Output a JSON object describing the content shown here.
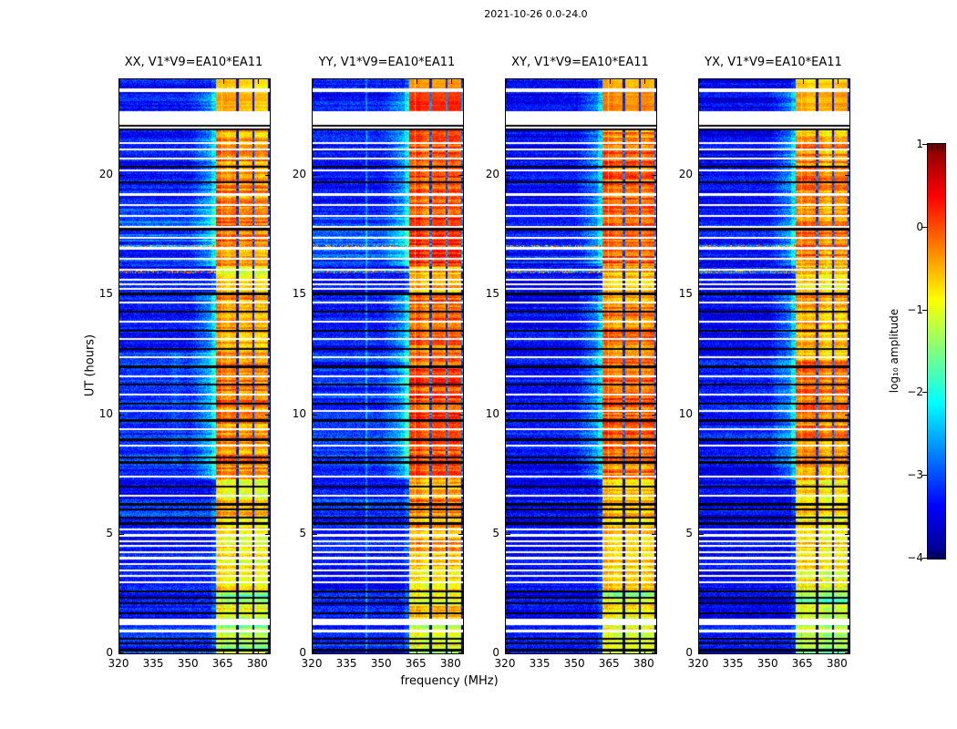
{
  "title": "2021-10-26 0.0-24.0",
  "axes": {
    "xlabel": "frequency (MHz)",
    "ylabel": "UT (hours)",
    "xlim": [
      320,
      385
    ],
    "ylim": [
      0,
      24
    ],
    "xticks": [
      320,
      335,
      350,
      365,
      380
    ],
    "yticks": [
      0,
      5,
      10,
      15,
      20
    ],
    "xtick_labels": [
      "320",
      "335",
      "350",
      "365",
      "380"
    ],
    "ytick_labels": [
      "0",
      "5",
      "10",
      "15",
      "20"
    ]
  },
  "colorbar": {
    "label": "log₁₀ amplitude",
    "colormap": "jet",
    "vmin": -4,
    "vmax": 1,
    "ticks": [
      1,
      0,
      -1,
      -2,
      -3,
      -4
    ],
    "tick_labels": [
      "1",
      "0",
      "−1",
      "−2",
      "−3",
      "−4"
    ]
  },
  "chart_data": {
    "type": "heatmap",
    "description": "Four dynamic-spectrum panels (polarization products XX, YY, XY, YX of baseline V1*V9=EA10*EA11) showing log10 amplitude vs UT hour (y, 0-24) and frequency (x, 320-385 MHz); strong RFI band 361.5-385 MHz, quiet blue background elsewhere, white rows = missing scans.",
    "panels": [
      {
        "title": "XX, V1*V9=EA10*EA11",
        "pol": "XX",
        "seed": 11,
        "band_boost": 0.0,
        "strip2_extra": 0.0,
        "bg_level": -3.3,
        "streaks": 1.0,
        "vline_mhz": null,
        "cyan_scale": 1.0
      },
      {
        "title": "YY, V1*V9=EA10*EA11",
        "pol": "YY",
        "seed": 22,
        "band_boost": 0.3,
        "strip2_extra": 0.4,
        "bg_level": -3.3,
        "streaks": 0.6,
        "vline_mhz": 343,
        "cyan_scale": 1.0
      },
      {
        "title": "XY, V1*V9=EA10*EA11",
        "pol": "XY",
        "seed": 33,
        "band_boost": 0.12,
        "strip2_extra": 0.05,
        "bg_level": -3.4,
        "streaks": 0.3,
        "vline_mhz": null,
        "cyan_scale": 0.55
      },
      {
        "title": "YX, V1*V9=EA10*EA11",
        "pol": "YX",
        "seed": 44,
        "band_boost": 0.05,
        "strip2_extra": 0.0,
        "bg_level": -3.4,
        "streaks": 0.3,
        "vline_mhz": null,
        "cyan_scale": 0.55
      }
    ],
    "band": {
      "f_start": 361.5,
      "f_end": 385,
      "bright_left_edge_until": 366.2,
      "gaps": [
        {
          "f": 364.2,
          "w": 0.6,
          "depth": 0.7
        },
        {
          "f": 370.8,
          "w": 0.9,
          "depth": 2.8
        },
        {
          "f": 377.8,
          "w": 0.9,
          "depth": 2.8
        },
        {
          "f": 384.3,
          "w": 0.8,
          "depth": 2.8
        }
      ]
    },
    "band_epochs": [
      [
        0.0,
        1.45,
        -1.35
      ],
      [
        1.45,
        2.1,
        -1.05
      ],
      [
        2.1,
        2.6,
        -1.5
      ],
      [
        2.6,
        4.2,
        -0.95
      ],
      [
        4.2,
        5.75,
        -0.85
      ],
      [
        5.75,
        6.45,
        -0.7
      ],
      [
        6.45,
        7.3,
        -0.85
      ],
      [
        7.3,
        9.2,
        -0.4
      ],
      [
        9.2,
        12.2,
        -0.3
      ],
      [
        12.2,
        15.1,
        -0.5
      ],
      [
        15.1,
        16.2,
        -0.8
      ],
      [
        16.2,
        18.6,
        -0.25
      ],
      [
        18.6,
        21.3,
        -0.35
      ],
      [
        21.3,
        21.9,
        -0.5
      ],
      [
        22.7,
        23.5,
        -0.55
      ],
      [
        23.65,
        24.0,
        -0.7
      ]
    ],
    "white_gaps": [
      [
        21.9,
        22.7
      ],
      [
        23.5,
        23.65
      ],
      [
        1.2,
        1.45
      ]
    ],
    "separators": {
      "white": [
        0.95,
        3.0,
        3.25,
        3.5,
        3.75,
        4.0,
        4.25,
        4.5,
        4.7,
        4.95,
        5.2,
        6.6,
        7.4,
        8.7,
        9.4,
        10.15,
        10.85,
        11.6,
        12.4,
        13.15,
        13.9,
        14.7,
        15.25,
        15.45,
        15.65,
        16.05,
        16.5,
        16.95,
        17.4,
        17.85,
        18.3,
        18.75,
        19.2,
        20.2,
        20.7,
        21.1,
        21.35
      ],
      "black": [
        0.15,
        0.45,
        0.62,
        1.7,
        2.1,
        2.35,
        2.6,
        5.45,
        5.7,
        6.05,
        6.25,
        7.0,
        8.0,
        8.2,
        8.95,
        9.75,
        10.45,
        11.25,
        12.0,
        12.75,
        13.5,
        14.3,
        15.05,
        17.75,
        19.72,
        20.35,
        21.93,
        22.08
      ]
    },
    "speckle_rows": [
      15.96,
      17.06
    ],
    "cyan_epochs": [
      [
        16.2,
        18.6,
        0.5
      ],
      [
        7.8,
        12.6,
        0.28
      ],
      [
        0.0,
        1.45,
        0.3
      ],
      [
        5.75,
        6.45,
        0.3
      ]
    ],
    "streak_epoch": [
      7.8,
      12.6
    ],
    "streak_freq_range": [
      338,
      361
    ]
  }
}
